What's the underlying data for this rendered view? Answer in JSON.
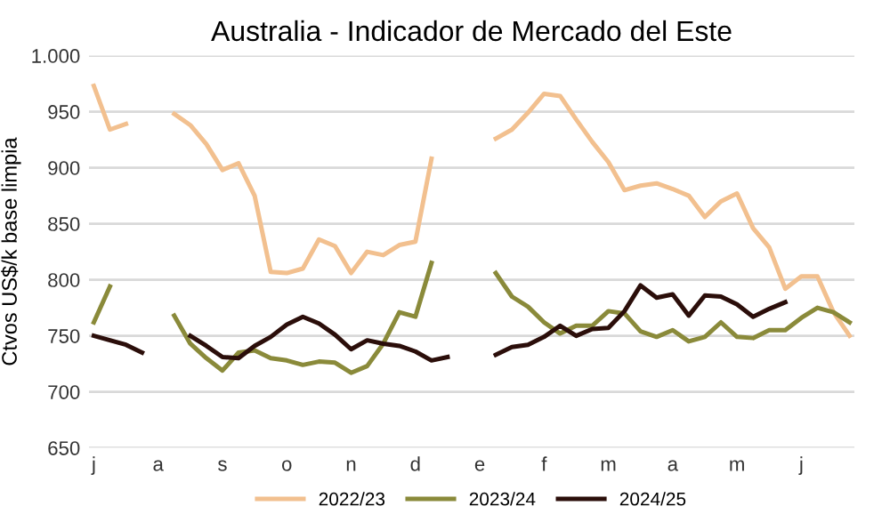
{
  "chart_data": {
    "type": "line",
    "title": "Australia - Indicador de Mercado del Este",
    "ylabel": "Ctvos US$/k base limpia",
    "categories": [
      "j",
      null,
      null,
      null,
      "a",
      null,
      null,
      null,
      "s",
      null,
      null,
      null,
      "o",
      null,
      null,
      null,
      "n",
      null,
      null,
      null,
      "d",
      null,
      null,
      null,
      "e",
      null,
      null,
      null,
      "f",
      null,
      null,
      null,
      "m",
      null,
      null,
      null,
      "a",
      null,
      null,
      null,
      "m",
      null,
      null,
      null,
      "j",
      null,
      null,
      null
    ],
    "ylim": [
      650,
      1000
    ],
    "yticks": [
      650,
      700,
      750,
      800,
      850,
      900,
      950,
      {
        "value": 1000,
        "label": "1.000"
      }
    ],
    "grid": "y",
    "legend": "bottom",
    "marker": "none",
    "line_style": "solid",
    "series": [
      {
        "name": "2022/23",
        "color": "#f2c08f",
        "values": [
          973,
          934,
          939,
          null,
          null,
          948,
          938,
          921,
          898,
          904,
          875,
          807,
          806,
          810,
          836,
          830,
          806,
          825,
          822,
          831,
          834,
          908,
          null,
          null,
          null,
          926,
          934,
          949,
          966,
          964,
          943,
          923,
          905,
          880,
          884,
          886,
          881,
          875,
          856,
          870,
          877,
          846,
          829,
          792,
          803,
          803,
          771,
          750
        ]
      },
      {
        "name": "2023/24",
        "color": "#8a8a3a",
        "values": [
          762,
          794,
          null,
          null,
          null,
          768,
          743,
          730,
          719,
          735,
          737,
          730,
          728,
          724,
          727,
          726,
          717,
          723,
          743,
          771,
          767,
          815,
          null,
          null,
          null,
          806,
          785,
          776,
          762,
          752,
          759,
          759,
          772,
          770,
          754,
          749,
          755,
          745,
          749,
          762,
          749,
          748,
          755,
          755,
          766,
          775,
          771,
          762
        ]
      },
      {
        "name": "2024/25",
        "color": "#2b0e0a",
        "values": [
          750,
          746,
          742,
          735,
          null,
          null,
          750,
          741,
          731,
          730,
          741,
          749,
          760,
          767,
          761,
          751,
          738,
          746,
          743,
          741,
          736,
          728,
          731,
          null,
          null,
          733,
          740,
          742,
          749,
          759,
          750,
          756,
          757,
          772,
          795,
          784,
          787,
          768,
          786,
          785,
          778,
          767,
          774,
          780,
          null,
          null,
          null,
          null
        ]
      }
    ]
  }
}
